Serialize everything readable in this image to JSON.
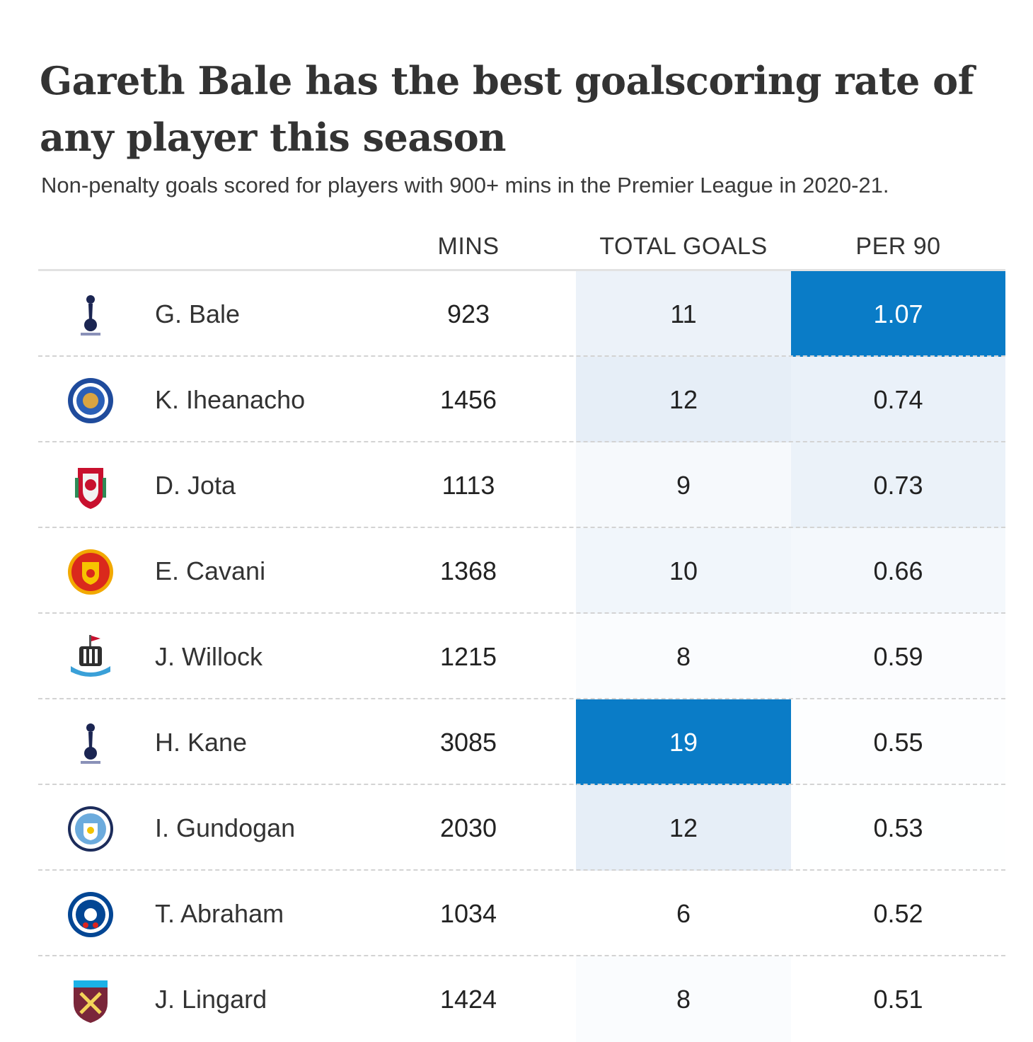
{
  "title": "Gareth Bale has the best goalscoring rate of any player this season",
  "subtitle": "Non-penalty goals scored for players with 900+ mins in the Premier League in 2020-21.",
  "chart_data": {
    "type": "table",
    "columns": [
      "MINS",
      "TOTAL GOALS",
      "PER 90"
    ],
    "shading": "heatmap on TOTAL GOALS and PER 90 (darker blue = higher)",
    "max_color": "#0a7cc7",
    "base_color": "#ffffff",
    "rows": [
      {
        "player": "G. Bale",
        "crest": "tottenham-crest",
        "mins": "923",
        "total_goals": "11",
        "per_90": "1.07"
      },
      {
        "player": "K. Iheanacho",
        "crest": "leicester-crest",
        "mins": "1456",
        "total_goals": "12",
        "per_90": "0.74"
      },
      {
        "player": "D. Jota",
        "crest": "liverpool-crest",
        "mins": "1113",
        "total_goals": "9",
        "per_90": "0.73"
      },
      {
        "player": "E. Cavani",
        "crest": "manchester-united-crest",
        "mins": "1368",
        "total_goals": "10",
        "per_90": "0.66"
      },
      {
        "player": "J. Willock",
        "crest": "newcastle-crest",
        "mins": "1215",
        "total_goals": "8",
        "per_90": "0.59"
      },
      {
        "player": "H. Kane",
        "crest": "tottenham-crest",
        "mins": "3085",
        "total_goals": "19",
        "per_90": "0.55"
      },
      {
        "player": "I. Gundogan",
        "crest": "manchester-city-crest",
        "mins": "2030",
        "total_goals": "12",
        "per_90": "0.53"
      },
      {
        "player": "T. Abraham",
        "crest": "chelsea-crest",
        "mins": "1034",
        "total_goals": "6",
        "per_90": "0.52"
      },
      {
        "player": "J. Lingard",
        "crest": "west-ham-crest",
        "mins": "1424",
        "total_goals": "8",
        "per_90": "0.51"
      }
    ]
  }
}
